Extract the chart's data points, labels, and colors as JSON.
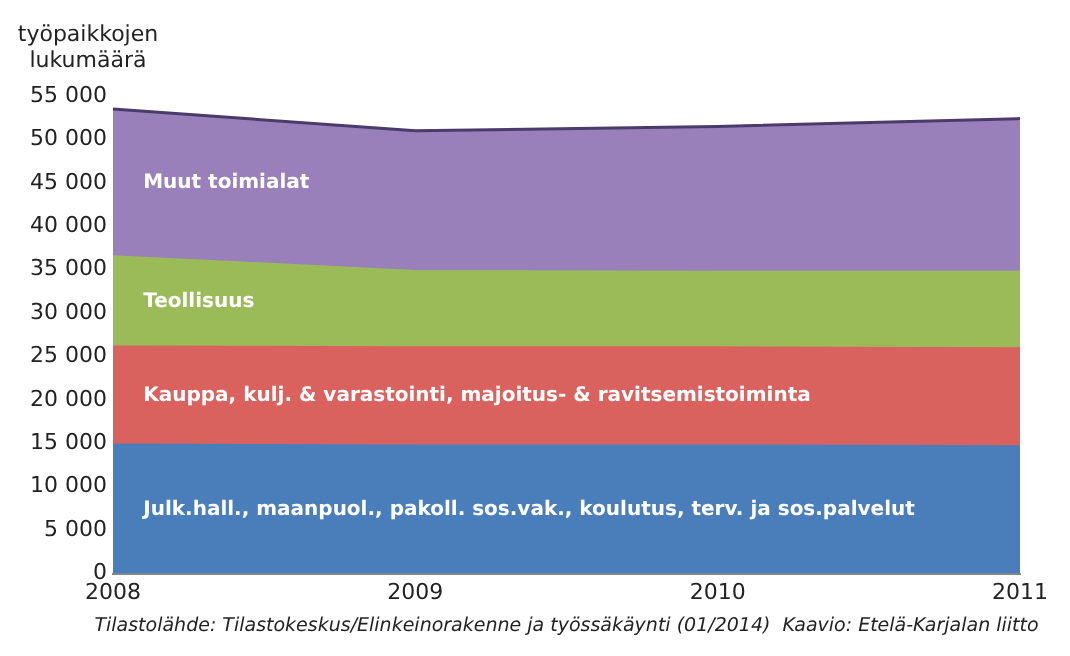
{
  "chart_data": {
    "type": "area",
    "stacked": true,
    "ylabel": "työpaikkojen\nlukumäärä",
    "x": [
      2008,
      2009,
      2010,
      2011
    ],
    "xlim": [
      2008,
      2011
    ],
    "xticks": [
      2008,
      2009,
      2010,
      2011
    ],
    "ylim": [
      0,
      55000
    ],
    "yticks": [
      {
        "value": 0,
        "label": "0"
      },
      {
        "value": 5000,
        "label": "5 000"
      },
      {
        "value": 10000,
        "label": "10 000"
      },
      {
        "value": 15000,
        "label": "15 000"
      },
      {
        "value": 20000,
        "label": "20 000"
      },
      {
        "value": 25000,
        "label": "25 000"
      },
      {
        "value": 30000,
        "label": "30 000"
      },
      {
        "value": 35000,
        "label": "35 000"
      },
      {
        "value": 40000,
        "label": "40 000"
      },
      {
        "value": 45000,
        "label": "45 000"
      },
      {
        "value": 50000,
        "label": "50 000"
      },
      {
        "value": 55000,
        "label": "55 000"
      }
    ],
    "legend": false,
    "series": [
      {
        "name": "Julk.hall., maanpuol., pakoll. sos.vak., koulutus, terv. ja sos.palvelut",
        "color": "#4a7ebb",
        "values": [
          14800,
          14700,
          14700,
          14600
        ]
      },
      {
        "name": "Kauppa, kulj. & varastointi, majoitus- & ravitsemistoiminta",
        "color": "#d9625f",
        "values": [
          11300,
          11300,
          11300,
          11300
        ]
      },
      {
        "name": "Teollisuus",
        "color": "#9bbb59",
        "values": [
          10400,
          8800,
          8700,
          8800
        ]
      },
      {
        "name": "Muut toimialat",
        "color": "#9a80bb",
        "values": [
          17000,
          16200,
          16800,
          17700
        ]
      }
    ],
    "annotations": [
      "Tilastolähde: Tilastokeskus/Elinkeinorakenne ja työssäkäynti (01/2014)  Kaavio: Etelä-Karjalan liitto"
    ]
  }
}
